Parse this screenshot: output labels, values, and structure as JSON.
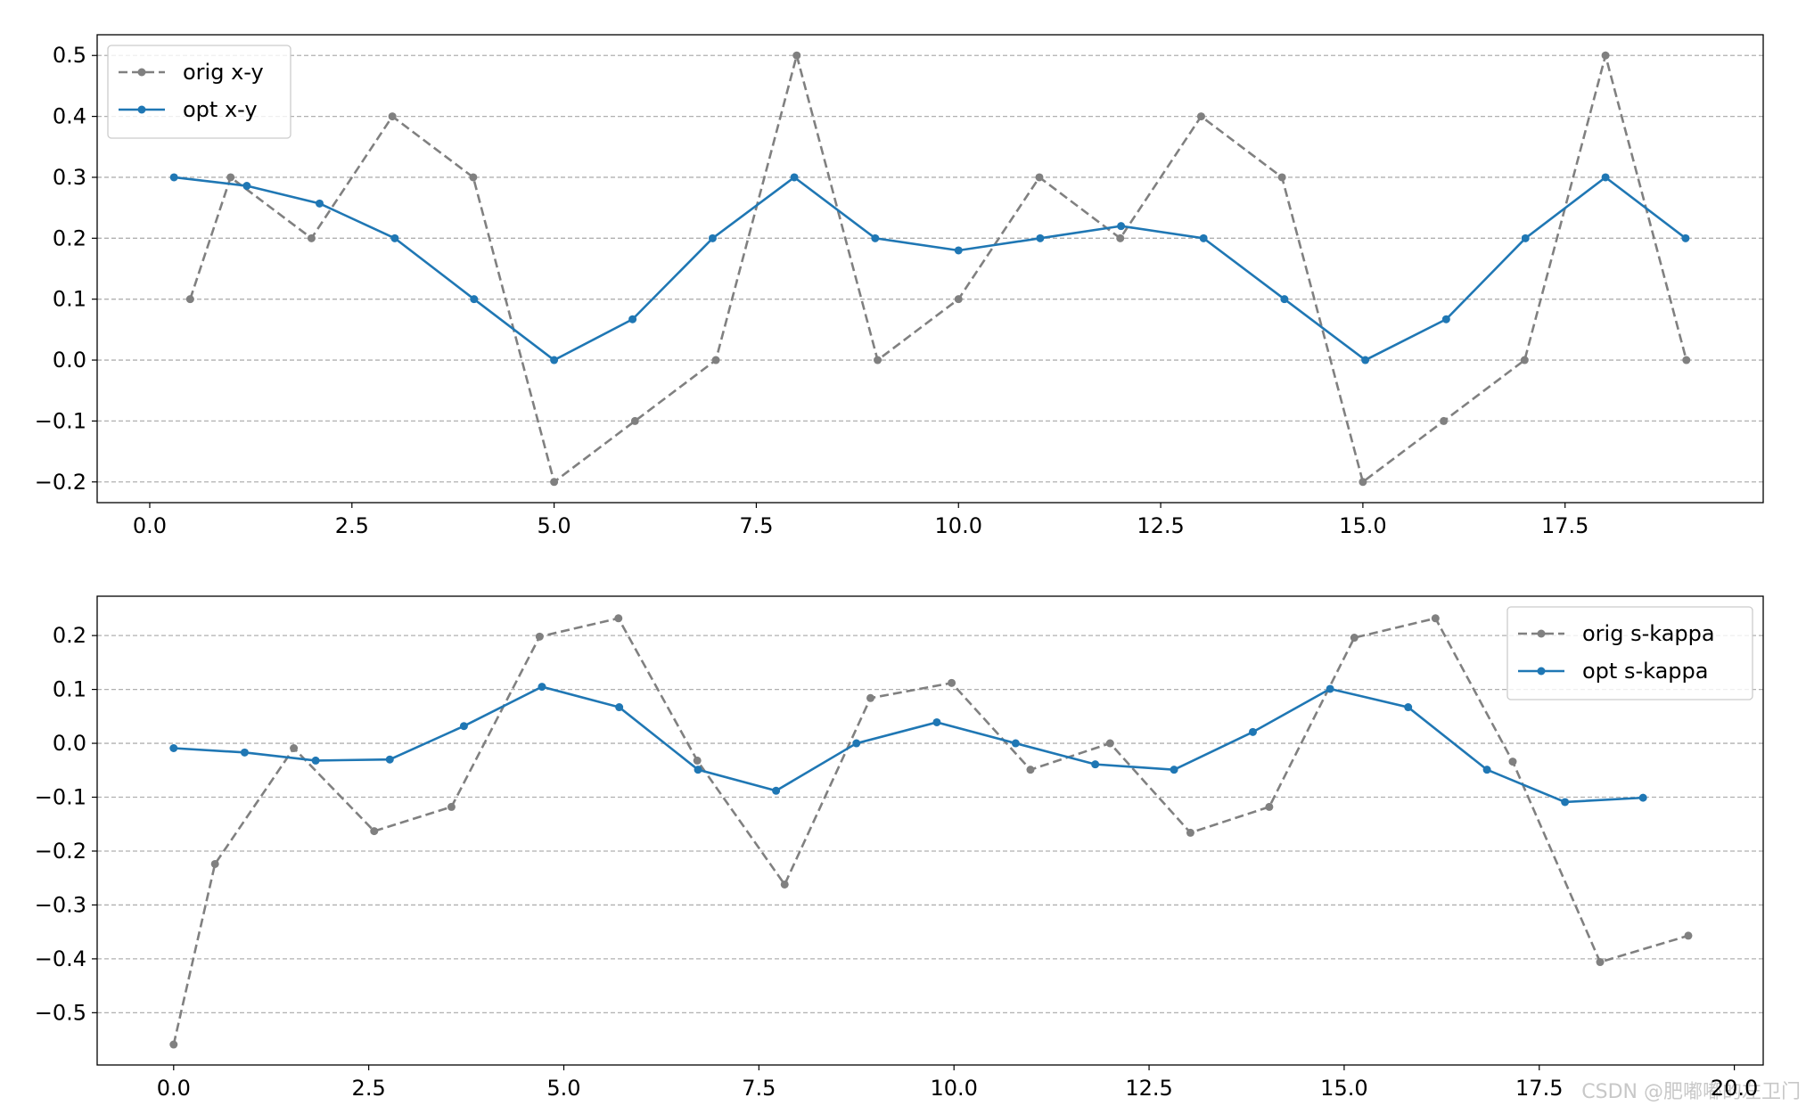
{
  "chart_data": [
    {
      "type": "line",
      "grid": "y",
      "legend": "upper left",
      "xlim": [
        -0.65,
        19.95
      ],
      "ylim": [
        -0.234,
        0.534
      ],
      "xticks": [
        {
          "value": 0,
          "label": "0.0"
        },
        {
          "value": 2.5,
          "label": "2.5"
        },
        {
          "value": 5,
          "label": "5.0"
        },
        {
          "value": 7.5,
          "label": "7.5"
        },
        {
          "value": 10,
          "label": "10.0"
        },
        {
          "value": 12.5,
          "label": "12.5"
        },
        {
          "value": 15,
          "label": "15.0"
        },
        {
          "value": 17.5,
          "label": "17.5"
        }
      ],
      "yticks": [
        {
          "value": -0.2,
          "label": "−0.2"
        },
        {
          "value": -0.1,
          "label": "−0.1"
        },
        {
          "value": 0,
          "label": "0.0"
        },
        {
          "value": 0.1,
          "label": "0.1"
        },
        {
          "value": 0.2,
          "label": "0.2"
        },
        {
          "value": 0.3,
          "label": "0.3"
        },
        {
          "value": 0.4,
          "label": "0.4"
        },
        {
          "value": 0.5,
          "label": "0.5"
        }
      ],
      "series": [
        {
          "name": "orig x-y",
          "color": "#808080",
          "linestyle": "dashed",
          "x": [
            0.5,
            1,
            2,
            3,
            4,
            5,
            6,
            7,
            8,
            9,
            10,
            11,
            12,
            13,
            14,
            15,
            16,
            17,
            18,
            19
          ],
          "values": [
            0.1,
            0.3,
            0.2,
            0.4,
            0.3,
            -0.2,
            -0.1,
            0,
            0.5,
            0,
            0.1,
            0.3,
            0.2,
            0.4,
            0.3,
            -0.2,
            -0.1,
            0,
            0.5,
            0
          ]
        },
        {
          "name": "opt x-y",
          "color": "#1f77b4",
          "linestyle": "solid",
          "x": [
            0.3,
            1.2,
            2.1,
            3.03,
            4.01,
            5,
            5.97,
            6.96,
            7.97,
            8.97,
            10,
            11.01,
            12.01,
            13.03,
            14.03,
            15.03,
            16.03,
            17.01,
            18,
            18.99
          ],
          "values": [
            0.3,
            0.286,
            0.257,
            0.2,
            0.1,
            0,
            0.067,
            0.2,
            0.3,
            0.2,
            0.18,
            0.2,
            0.22,
            0.2,
            0.1,
            0,
            0.067,
            0.2,
            0.3,
            0.2
          ]
        }
      ]
    },
    {
      "type": "line",
      "grid": "y",
      "legend": "upper right",
      "xlim": [
        -0.98,
        20.37
      ],
      "ylim": [
        -0.597,
        0.273
      ],
      "xticks": [
        {
          "value": 0,
          "label": "0.0"
        },
        {
          "value": 2.5,
          "label": "2.5"
        },
        {
          "value": 5,
          "label": "5.0"
        },
        {
          "value": 7.5,
          "label": "7.5"
        },
        {
          "value": 10,
          "label": "10.0"
        },
        {
          "value": 12.5,
          "label": "12.5"
        },
        {
          "value": 15,
          "label": "15.0"
        },
        {
          "value": 17.5,
          "label": "17.5"
        },
        {
          "value": 20,
          "label": "20.0"
        }
      ],
      "yticks": [
        {
          "value": -0.5,
          "label": "−0.5"
        },
        {
          "value": -0.4,
          "label": "−0.4"
        },
        {
          "value": -0.3,
          "label": "−0.3"
        },
        {
          "value": -0.2,
          "label": "−0.2"
        },
        {
          "value": -0.1,
          "label": "−0.1"
        },
        {
          "value": 0,
          "label": "0.0"
        },
        {
          "value": 0.1,
          "label": "0.1"
        },
        {
          "value": 0.2,
          "label": "0.2"
        }
      ],
      "series": [
        {
          "name": "orig s-kappa",
          "color": "#808080",
          "linestyle": "dashed",
          "x": [
            0,
            0.53,
            1.54,
            2.57,
            3.56,
            4.69,
            5.7,
            6.71,
            7.83,
            8.93,
            9.97,
            10.98,
            12,
            13.03,
            14.04,
            15.13,
            16.17,
            17.16,
            18.28,
            19.41
          ],
          "values": [
            -0.559,
            -0.224,
            -0.009,
            -0.163,
            -0.118,
            0.198,
            0.232,
            -0.032,
            -0.262,
            0.084,
            0.112,
            -0.049,
            0,
            -0.166,
            -0.118,
            0.196,
            0.232,
            -0.034,
            -0.406,
            -0.357
          ]
        },
        {
          "name": "opt s-kappa",
          "color": "#1f77b4",
          "linestyle": "solid",
          "x": [
            0,
            0.91,
            1.82,
            2.77,
            3.72,
            4.72,
            5.71,
            6.72,
            7.72,
            8.75,
            9.78,
            10.79,
            11.81,
            12.82,
            13.83,
            14.82,
            15.82,
            16.83,
            17.83,
            18.83
          ],
          "values": [
            -0.009,
            -0.017,
            -0.032,
            -0.03,
            0.032,
            0.105,
            0.067,
            -0.049,
            -0.088,
            0,
            0.039,
            0,
            -0.039,
            -0.049,
            0.021,
            0.101,
            0.067,
            -0.049,
            -0.109,
            -0.101
          ]
        }
      ]
    }
  ],
  "watermark": "CSDN @肥嘟嘟的左卫门"
}
